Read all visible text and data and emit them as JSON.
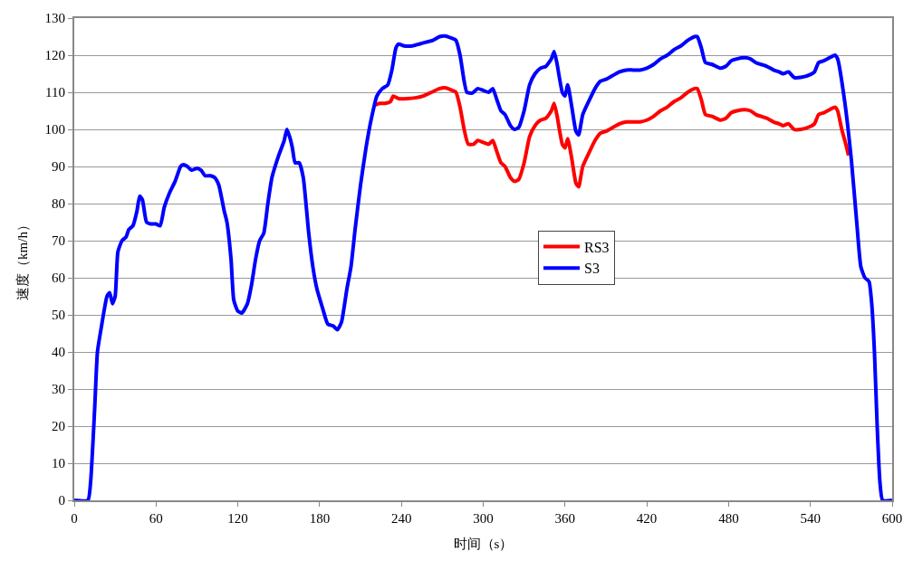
{
  "chart_data": {
    "type": "line",
    "xlabel": "时间（s）",
    "ylabel": "速度（km/h）",
    "xlim": [
      0,
      600
    ],
    "xticks": [
      0,
      60,
      120,
      180,
      240,
      300,
      360,
      420,
      480,
      540,
      600
    ],
    "ylim": [
      0,
      130
    ],
    "yticks": [
      0,
      10,
      20,
      30,
      40,
      50,
      60,
      70,
      80,
      90,
      100,
      110,
      120,
      130
    ],
    "grid": "y",
    "legend": "right",
    "marker": "none",
    "line_style": "solid",
    "series": [
      {
        "name": "RS3",
        "color": "#ff0000",
        "x": [
          220,
          224,
          228,
          232,
          234,
          238,
          244,
          250,
          256,
          262,
          268,
          272,
          276,
          280,
          283,
          286,
          289,
          293,
          296,
          300,
          304,
          307,
          310,
          313,
          316,
          320,
          323,
          326,
          330,
          334,
          338,
          342,
          346,
          350,
          352,
          354,
          358,
          360,
          362,
          365,
          368,
          370,
          373,
          378,
          382,
          386,
          390,
          395,
          400,
          405,
          410,
          415,
          420,
          425,
          430,
          435,
          440,
          445,
          450,
          455,
          457,
          460,
          463,
          468,
          474,
          478,
          482,
          486,
          492,
          496,
          500,
          504,
          508,
          513,
          517,
          520,
          524,
          528,
          533,
          540,
          543,
          546,
          550,
          555,
          558,
          560,
          563,
          566,
          568
        ],
        "values": [
          106.5,
          107,
          107,
          107.5,
          109,
          108.3,
          108.3,
          108.5,
          109,
          110,
          111,
          111.2,
          110.7,
          110,
          106,
          100,
          96,
          96,
          97,
          96.5,
          96,
          97,
          94,
          91,
          90,
          87,
          86,
          86.5,
          91,
          98,
          101,
          102.5,
          103,
          105,
          107,
          104,
          96,
          95,
          97.5,
          92,
          85.5,
          84.5,
          90,
          94,
          97,
          99,
          99.5,
          100.5,
          101.5,
          102,
          102,
          102,
          102.5,
          103.5,
          105,
          106,
          107.5,
          108.5,
          110,
          111,
          111,
          108,
          104,
          103.5,
          102.5,
          103,
          104.5,
          105,
          105.3,
          105,
          104,
          103.5,
          103,
          102,
          101.5,
          101,
          101.5,
          100,
          100,
          100.8,
          101.5,
          104,
          104.5,
          105.5,
          106,
          105,
          100,
          96,
          93
        ]
      },
      {
        "name": "S3",
        "color": "#0000ff",
        "x": [
          0,
          10,
          12,
          15,
          17,
          20,
          24,
          26,
          28,
          30,
          32,
          35,
          38,
          40,
          43,
          46,
          48,
          50,
          53,
          56,
          60,
          63,
          66,
          70,
          74,
          78,
          80,
          83,
          86,
          90,
          93,
          96,
          100,
          103,
          106,
          110,
          112,
          115,
          117,
          120,
          123,
          127,
          130,
          133,
          136,
          139,
          142,
          145,
          150,
          154,
          156,
          158,
          160,
          162,
          165,
          168,
          172,
          175,
          178,
          182,
          186,
          190,
          193,
          196,
          200,
          203,
          206,
          210,
          214,
          218,
          222,
          226,
          230,
          233,
          236,
          238,
          242,
          248,
          253,
          258,
          263,
          268,
          272,
          276,
          280,
          283,
          286,
          288,
          292,
          296,
          300,
          304,
          307,
          310,
          313,
          316,
          320,
          323,
          326,
          330,
          334,
          338,
          342,
          346,
          350,
          352,
          354,
          358,
          360,
          362,
          365,
          368,
          370,
          373,
          378,
          382,
          386,
          390,
          395,
          400,
          405,
          410,
          415,
          420,
          425,
          430,
          435,
          440,
          445,
          450,
          455,
          457,
          460,
          463,
          468,
          474,
          478,
          482,
          486,
          492,
          496,
          500,
          504,
          508,
          513,
          517,
          520,
          524,
          528,
          533,
          540,
          543,
          546,
          550,
          555,
          558,
          560,
          565,
          570,
          574,
          577,
          580,
          583,
          585,
          587,
          589,
          591,
          593,
          600
        ],
        "values": [
          0,
          0,
          5,
          25,
          40,
          47,
          55,
          56,
          53,
          55,
          67,
          70,
          71,
          73,
          74,
          78,
          82,
          81,
          75,
          74.5,
          74.5,
          74,
          79,
          83,
          86,
          90,
          90.5,
          90,
          89,
          89.5,
          89,
          87.5,
          87.5,
          87,
          85,
          78,
          75,
          65,
          54,
          51,
          50.5,
          53,
          58,
          65,
          70,
          72,
          80,
          87,
          93,
          97,
          100,
          98,
          95,
          91,
          91,
          87,
          72,
          63,
          57,
          52,
          47.5,
          47,
          46,
          48,
          57,
          63,
          73,
          85,
          95,
          103,
          109,
          111,
          112,
          116,
          122,
          123,
          122.5,
          122.5,
          123,
          123.5,
          124,
          125,
          125.2,
          124.7,
          124,
          120,
          113,
          110,
          109.8,
          111,
          110.5,
          110,
          111,
          108,
          105,
          104,
          101,
          100,
          100.5,
          105,
          112,
          115,
          116.5,
          117,
          119,
          121,
          118,
          110,
          109,
          112,
          106,
          99.5,
          98.5,
          104,
          108,
          111,
          113,
          113.5,
          114.5,
          115.5,
          116,
          116,
          116,
          116.5,
          117.5,
          119,
          120,
          121.5,
          122.5,
          124,
          125,
          125,
          122,
          118,
          117.5,
          116.5,
          117,
          118.5,
          119,
          119.3,
          119,
          118,
          117.5,
          117,
          116,
          115.5,
          115,
          115.5,
          114,
          114,
          114.8,
          115.5,
          118,
          118.5,
          119.5,
          120,
          119,
          108,
          92,
          75,
          63,
          60,
          59,
          53,
          40,
          20,
          5,
          0,
          0
        ]
      }
    ]
  }
}
